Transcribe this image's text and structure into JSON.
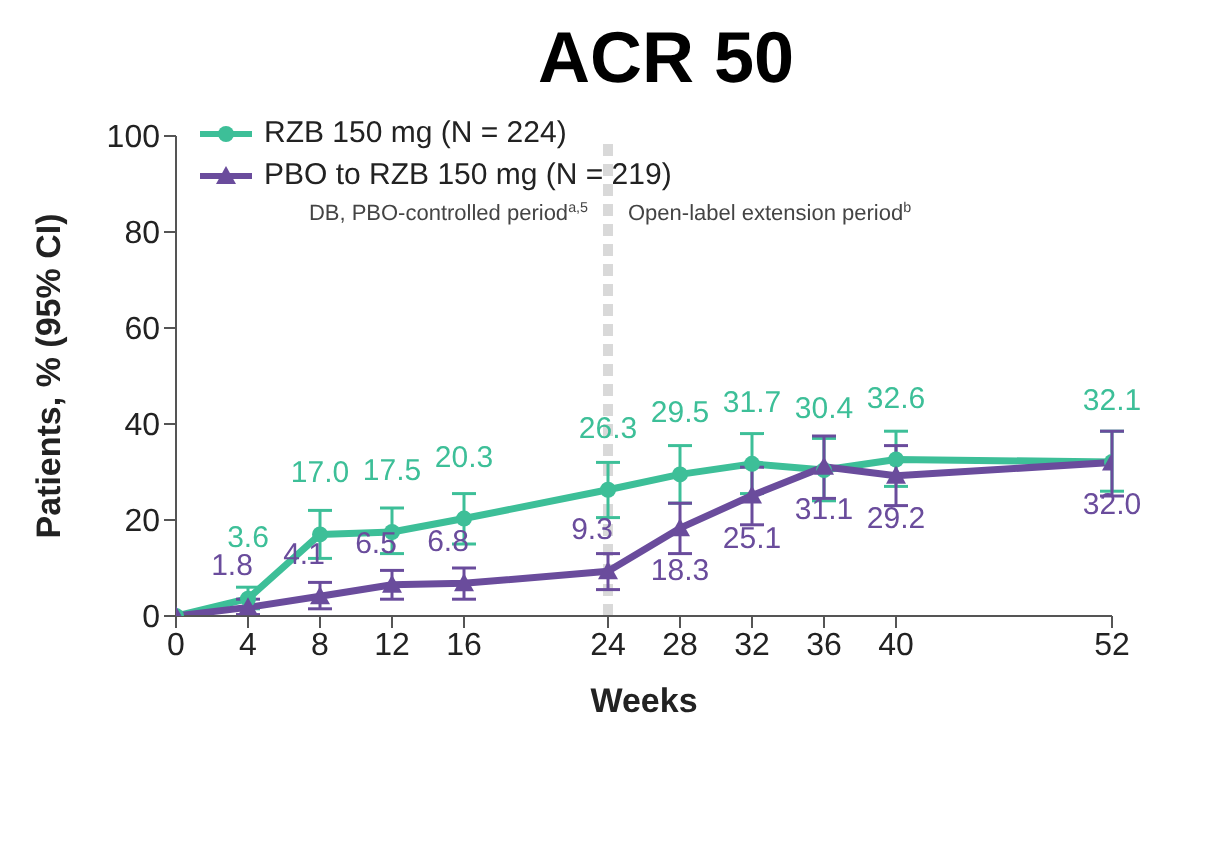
{
  "chart_data": {
    "type": "line",
    "title": "ACR 50",
    "xlabel": "Weeks",
    "ylabel": "Patients, % (95% CI)",
    "x": [
      0,
      4,
      8,
      12,
      16,
      24,
      28,
      32,
      36,
      40,
      52
    ],
    "series": [
      {
        "name": "RZB 150 mg (N = 224)",
        "color": "#3dbf98",
        "marker": "circle",
        "values": [
          0,
          3.6,
          17.0,
          17.5,
          20.3,
          26.3,
          29.5,
          31.7,
          30.4,
          32.6,
          32.1
        ],
        "value_labels": [
          null,
          "3.6",
          "17.0",
          "17.5",
          "20.3",
          "26.3",
          "29.5",
          "31.7",
          "30.4",
          "32.6",
          "32.1"
        ],
        "errors": [
          null,
          [
            1.5,
            6
          ],
          [
            12,
            22
          ],
          [
            13,
            22.5
          ],
          [
            15,
            25.5
          ],
          [
            20.5,
            32
          ],
          [
            23.5,
            35.5
          ],
          [
            25.5,
            38
          ],
          [
            24,
            37
          ],
          [
            27,
            38.5
          ],
          [
            26,
            38.5
          ]
        ]
      },
      {
        "name": "PBO to RZB 150 mg (N = 219)",
        "color": "#6a4c9c",
        "marker": "triangle",
        "values": [
          0,
          1.8,
          4.1,
          6.5,
          6.8,
          9.3,
          18.3,
          25.1,
          31.1,
          29.2,
          32.0
        ],
        "value_labels": [
          null,
          "1.8",
          "4.1",
          "6.5",
          "6.8",
          "9.3",
          "18.3",
          "25.1",
          "31.1",
          "29.2",
          "32.0"
        ],
        "errors": [
          null,
          [
            0.3,
            3.5
          ],
          [
            1.5,
            7
          ],
          [
            3.5,
            9.5
          ],
          [
            3.5,
            10
          ],
          [
            5.5,
            13
          ],
          [
            13,
            23.5
          ],
          [
            19,
            31
          ],
          [
            24.5,
            37.5
          ],
          [
            23,
            35.5
          ],
          [
            25,
            38.5
          ]
        ]
      }
    ],
    "xlim": [
      0,
      52
    ],
    "xticks": [
      0,
      4,
      8,
      12,
      16,
      24,
      28,
      32,
      36,
      40,
      52
    ],
    "ylim": [
      0,
      100
    ],
    "yticks": [
      0,
      20,
      40,
      60,
      80,
      100
    ],
    "ref_lines": [
      {
        "axis": "x",
        "value": 24,
        "color": "#d9d9d9",
        "line_style": "dashed"
      }
    ],
    "annotations": [
      "DB, PBO-controlled period$^{a,5}$",
      "Open-label extension period$^{b}$"
    ],
    "legend": "top left",
    "grid": false,
    "line_style": "solid"
  }
}
